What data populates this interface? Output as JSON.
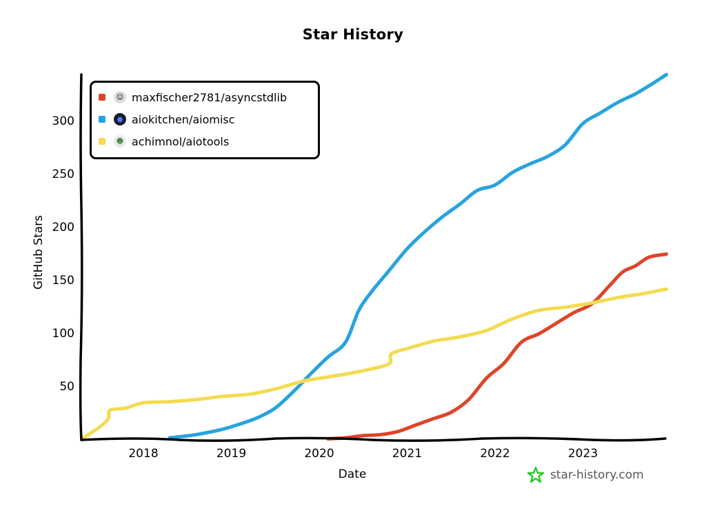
{
  "chart": {
    "title": "Star History",
    "xlabel": "Date",
    "ylabel": "GitHub Stars",
    "watermark": "star-history.com"
  },
  "axes": {
    "yticks": [
      {
        "label": "50",
        "value": 50
      },
      {
        "label": "100",
        "value": 100
      },
      {
        "label": "150",
        "value": 150
      },
      {
        "label": "200",
        "value": 200
      },
      {
        "label": "250",
        "value": 250
      },
      {
        "label": "300",
        "value": 300
      }
    ],
    "xticks": [
      {
        "label": "2018",
        "value": 2018.0
      },
      {
        "label": "2019",
        "value": 2019.0
      },
      {
        "label": "2020",
        "value": 2020.0
      },
      {
        "label": "2021",
        "value": 2021.0
      },
      {
        "label": "2022",
        "value": 2022.0
      },
      {
        "label": "2023",
        "value": 2023.0
      }
    ]
  },
  "legend": [
    {
      "label": "maxfischer2781/asyncstdlib",
      "color": "#dd4528",
      "avatar": "☺",
      "avatar_bg": "#dcdcdc"
    },
    {
      "label": "aiokitchen/aiomisc",
      "color": "#28a3dd",
      "avatar": "●",
      "avatar_bg": "#1a1a2e"
    },
    {
      "label": "achimnol/aiotools",
      "color": "#f3db52",
      "avatar": "☻",
      "avatar_bg": "#e8e8e8"
    }
  ],
  "chart_data": {
    "type": "line",
    "title": "Star History",
    "xlabel": "Date",
    "ylabel": "GitHub Stars",
    "xlim": [
      2017.3,
      2023.95
    ],
    "ylim": [
      0,
      345
    ],
    "grid": false,
    "legend_position": "upper left",
    "series": [
      {
        "name": "maxfischer2781/asyncstdlib",
        "color": "#dd4528",
        "x": [
          2020.1,
          2020.3,
          2020.5,
          2020.7,
          2020.9,
          2021.1,
          2021.3,
          2021.5,
          2021.7,
          2021.9,
          2022.1,
          2022.3,
          2022.5,
          2022.7,
          2022.9,
          2023.1,
          2023.3,
          2023.45,
          2023.6,
          2023.75,
          2023.95
        ],
        "y": [
          1,
          2,
          4,
          5,
          8,
          14,
          20,
          26,
          38,
          58,
          72,
          92,
          100,
          110,
          120,
          128,
          145,
          158,
          164,
          172,
          175
        ]
      },
      {
        "name": "aiokitchen/aiomisc",
        "color": "#28a3dd",
        "x": [
          2018.3,
          2018.6,
          2018.9,
          2019.1,
          2019.3,
          2019.5,
          2019.7,
          2019.9,
          2020.1,
          2020.3,
          2020.45,
          2020.6,
          2020.8,
          2021.0,
          2021.2,
          2021.4,
          2021.6,
          2021.8,
          2022.0,
          2022.2,
          2022.4,
          2022.6,
          2022.8,
          2023.0,
          2023.2,
          2023.4,
          2023.6,
          2023.8,
          2023.95
        ],
        "y": [
          2,
          5,
          10,
          15,
          21,
          30,
          45,
          62,
          78,
          92,
          122,
          140,
          160,
          180,
          196,
          210,
          222,
          235,
          240,
          252,
          260,
          267,
          278,
          298,
          308,
          318,
          326,
          336,
          344
        ]
      },
      {
        "name": "achimnol/aiotools",
        "color": "#f3db52",
        "x": [
          2017.3,
          2017.5,
          2017.6,
          2017.62,
          2017.8,
          2018.0,
          2018.3,
          2018.6,
          2018.9,
          2019.2,
          2019.5,
          2019.8,
          2020.0,
          2020.3,
          2020.6,
          2020.8,
          2020.82,
          2021.0,
          2021.3,
          2021.6,
          2021.9,
          2022.2,
          2022.5,
          2022.8,
          2023.1,
          2023.4,
          2023.7,
          2023.95
        ],
        "y": [
          1,
          12,
          20,
          28,
          30,
          35,
          36,
          38,
          41,
          43,
          48,
          55,
          58,
          62,
          67,
          72,
          81,
          86,
          93,
          97,
          103,
          114,
          122,
          125,
          129,
          134,
          138,
          142
        ]
      }
    ]
  }
}
